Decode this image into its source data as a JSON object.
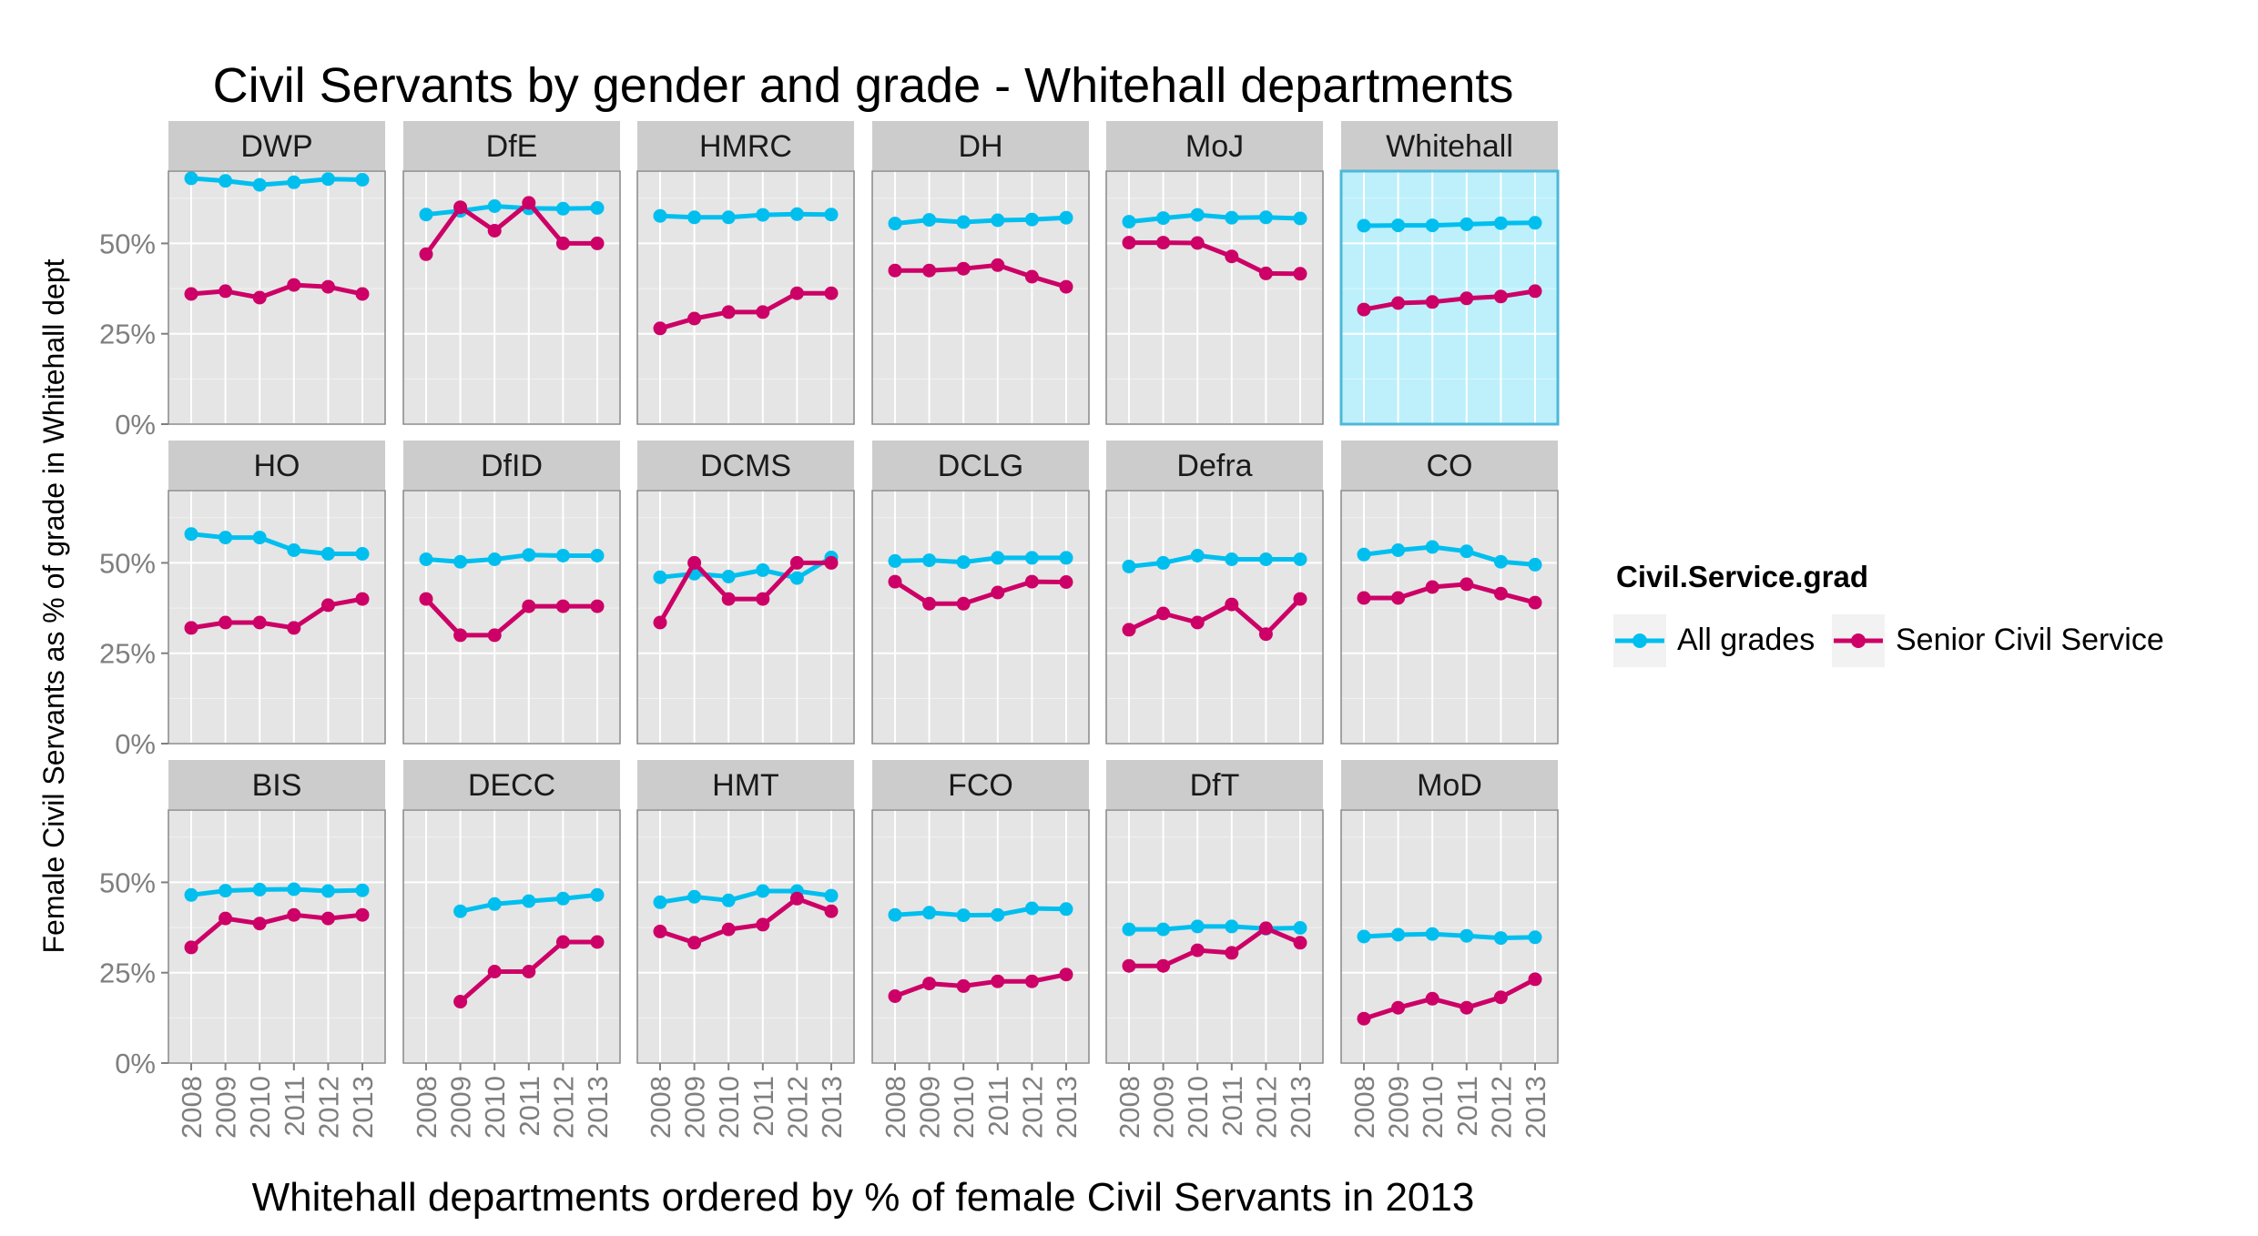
{
  "chart_data": {
    "type": "line",
    "title": "Civil Servants by gender and grade - Whitehall departments",
    "xlabel": "Whitehall departments ordered by % of female Civil Servants in 2013",
    "ylabel": "Female Civil Servants as % of grade in Whitehall dept",
    "x": [
      2008,
      2009,
      2010,
      2011,
      2012,
      2013
    ],
    "x_tick_labels": [
      "2008",
      "2009",
      "2010",
      "2011",
      "2012",
      "2013"
    ],
    "y_ticks": [
      0,
      25,
      50
    ],
    "y_tick_labels": [
      "0%",
      "25%",
      "50%"
    ],
    "ylim": [
      0,
      70
    ],
    "grid": true,
    "legend": {
      "title": "Civil.Service.grad",
      "position": "right",
      "entries": [
        "All grades",
        "Senior Civil Service"
      ]
    },
    "colors": {
      "All grades": "#00bfef",
      "Senior Civil Service": "#cc0066",
      "panel_bg": "#e5e5e5",
      "strip_bg": "#cccccc",
      "highlight_bg": "#bdf0fb",
      "highlight_border": "#4db8d8",
      "grid_major": "#ffffff",
      "frame": "#888888"
    },
    "highlighted_panel": "Whitehall",
    "facets": [
      {
        "name": "DWP",
        "series": [
          {
            "name": "All grades",
            "values": [
              68,
              67.3,
              66.2,
              66.9,
              67.8,
              67.6
            ]
          },
          {
            "name": "Senior Civil Service",
            "values": [
              36,
              36.8,
              35,
              38.5,
              38,
              36
            ]
          }
        ]
      },
      {
        "name": "DfE",
        "series": [
          {
            "name": "All grades",
            "values": [
              58,
              59,
              60.3,
              59.7,
              59.6,
              59.8
            ]
          },
          {
            "name": "Senior Civil Service",
            "values": [
              47,
              60,
              53.5,
              61.2,
              50,
              50
            ]
          }
        ]
      },
      {
        "name": "HMRC",
        "series": [
          {
            "name": "All grades",
            "values": [
              57.6,
              57.2,
              57.2,
              57.9,
              58.1,
              58
            ]
          },
          {
            "name": "Senior Civil Service",
            "values": [
              26.5,
              29.2,
              31,
              31,
              36.2,
              36.2
            ]
          }
        ]
      },
      {
        "name": "DH",
        "series": [
          {
            "name": "All grades",
            "values": [
              55.5,
              56.5,
              55.9,
              56.4,
              56.6,
              57.1
            ]
          },
          {
            "name": "Senior Civil Service",
            "values": [
              42.5,
              42.5,
              43,
              44,
              40.8,
              38
            ]
          }
        ]
      },
      {
        "name": "MoJ",
        "series": [
          {
            "name": "All grades",
            "values": [
              56,
              57,
              57.9,
              57.1,
              57.2,
              56.9
            ]
          },
          {
            "name": "Senior Civil Service",
            "values": [
              50.2,
              50.2,
              50.1,
              46.4,
              41.7,
              41.6
            ]
          }
        ]
      },
      {
        "name": "Whitehall",
        "series": [
          {
            "name": "All grades",
            "values": [
              54.9,
              55,
              55,
              55.3,
              55.6,
              55.7
            ]
          },
          {
            "name": "Senior Civil Service",
            "values": [
              31.7,
              33.5,
              33.8,
              34.8,
              35.3,
              36.8
            ]
          }
        ]
      },
      {
        "name": "HO",
        "series": [
          {
            "name": "All grades",
            "values": [
              58,
              57,
              57,
              53.5,
              52.5,
              52.5
            ]
          },
          {
            "name": "Senior Civil Service",
            "values": [
              32,
              33.5,
              33.5,
              32,
              38.3,
              40
            ]
          }
        ]
      },
      {
        "name": "DfID",
        "series": [
          {
            "name": "All grades",
            "values": [
              51,
              50.3,
              51,
              52.2,
              52,
              52
            ]
          },
          {
            "name": "Senior Civil Service",
            "values": [
              40,
              30,
              30,
              38,
              38,
              38
            ]
          }
        ]
      },
      {
        "name": "DCMS",
        "series": [
          {
            "name": "All grades",
            "values": [
              46,
              47,
              46.2,
              48,
              45.8,
              51.5
            ]
          },
          {
            "name": "Senior Civil Service",
            "values": [
              33.5,
              50,
              40,
              40,
              50,
              50
            ]
          }
        ]
      },
      {
        "name": "DCLG",
        "series": [
          {
            "name": "All grades",
            "values": [
              50.5,
              50.7,
              50.2,
              51.4,
              51.4,
              51.4
            ]
          },
          {
            "name": "Senior Civil Service",
            "values": [
              44.8,
              38.7,
              38.7,
              41.8,
              44.8,
              44.7
            ]
          }
        ]
      },
      {
        "name": "Defra",
        "series": [
          {
            "name": "All grades",
            "values": [
              49,
              50,
              52,
              51,
              51,
              51
            ]
          },
          {
            "name": "Senior Civil Service",
            "values": [
              31.5,
              36,
              33.5,
              38.5,
              30.3,
              40
            ]
          }
        ]
      },
      {
        "name": "CO",
        "series": [
          {
            "name": "All grades",
            "values": [
              52.3,
              53.5,
              54.4,
              53.2,
              50.3,
              49.5
            ]
          },
          {
            "name": "Senior Civil Service",
            "values": [
              40.3,
              40.3,
              43.3,
              44.1,
              41.5,
              39
            ]
          }
        ]
      },
      {
        "name": "BIS",
        "series": [
          {
            "name": "All grades",
            "values": [
              46.5,
              47.7,
              48,
              48.1,
              47.6,
              47.8
            ]
          },
          {
            "name": "Senior Civil Service",
            "values": [
              32,
              40,
              38.6,
              41,
              40,
              41
            ]
          }
        ]
      },
      {
        "name": "DECC",
        "series": [
          {
            "name": "All grades",
            "values": [
              null,
              42,
              44,
              44.8,
              45.5,
              46.5
            ]
          },
          {
            "name": "Senior Civil Service",
            "values": [
              null,
              17,
              25.3,
              25.3,
              33.5,
              33.5
            ]
          }
        ]
      },
      {
        "name": "HMT",
        "series": [
          {
            "name": "All grades",
            "values": [
              44.5,
              46,
              45,
              47.6,
              47.6,
              46.3
            ]
          },
          {
            "name": "Senior Civil Service",
            "values": [
              36.4,
              33.3,
              37,
              38.3,
              45.5,
              42
            ]
          }
        ]
      },
      {
        "name": "FCO",
        "series": [
          {
            "name": "All grades",
            "values": [
              41,
              41.6,
              40.9,
              41,
              42.8,
              42.6
            ]
          },
          {
            "name": "Senior Civil Service",
            "values": [
              18.5,
              22,
              21.3,
              22.6,
              22.6,
              24.5
            ]
          }
        ]
      },
      {
        "name": "DfT",
        "series": [
          {
            "name": "All grades",
            "values": [
              37,
              37,
              37.8,
              37.8,
              37.2,
              37.4
            ]
          },
          {
            "name": "Senior Civil Service",
            "values": [
              26.9,
              26.9,
              31.2,
              30.5,
              37.3,
              33.3
            ]
          }
        ]
      },
      {
        "name": "MoD",
        "series": [
          {
            "name": "All grades",
            "values": [
              35,
              35.5,
              35.7,
              35.2,
              34.6,
              34.8
            ]
          },
          {
            "name": "Senior Civil Service",
            "values": [
              12.3,
              15.3,
              17.8,
              15.3,
              18.2,
              23.2
            ]
          }
        ]
      }
    ]
  }
}
